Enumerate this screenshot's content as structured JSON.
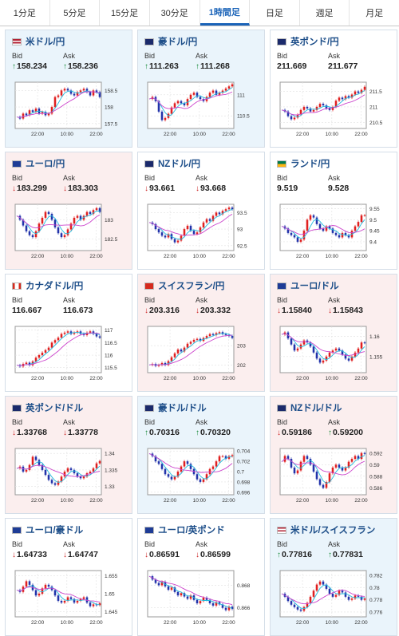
{
  "timeframe_tabs": [
    {
      "label": "1分足",
      "active": false
    },
    {
      "label": "5分足",
      "active": false
    },
    {
      "label": "15分足",
      "active": false
    },
    {
      "label": "30分足",
      "active": false
    },
    {
      "label": "1時間足",
      "active": true
    },
    {
      "label": "日足",
      "active": false
    },
    {
      "label": "週足",
      "active": false
    },
    {
      "label": "月足",
      "active": false
    }
  ],
  "labels": {
    "bid": "Bid",
    "ask": "Ask"
  },
  "colors": {
    "up_bg": "#eaf4fb",
    "down_bg": "#fbeeee",
    "candle_up": "#e02020",
    "candle_down": "#2233aa",
    "ma_fast": "#22bbdd",
    "ma_slow": "#cc44cc",
    "arrow_up": "#1a8a3a",
    "arrow_down": "#cc2222"
  },
  "cards": [
    {
      "pair": "米ドル/円",
      "flag": "us-jp",
      "trend": "up",
      "bid": "158.234",
      "ask": "158.236",
      "bid_dir": "up",
      "ask_dir": "up",
      "chart": {
        "x_ticks": [
          "22:00",
          "10:00",
          "22:00"
        ],
        "y_ticks": [
          {
            "label": "158.5",
            "value": 158.5
          },
          {
            "label": "158",
            "value": 158
          },
          {
            "label": "157.5",
            "value": 157.5
          }
        ],
        "ymin": 157.35,
        "ymax": 158.75,
        "series": [
          157.7,
          157.65,
          157.8,
          157.75,
          157.9,
          157.85,
          157.95,
          157.8,
          157.85,
          157.75,
          157.8,
          158.0,
          158.3,
          158.35,
          158.5,
          158.55,
          158.5,
          158.4,
          158.35,
          158.45,
          158.5,
          158.55,
          158.45,
          158.35,
          158.5,
          158.45,
          158.3
        ]
      }
    },
    {
      "pair": "豪ドル/円",
      "flag": "au-jp",
      "trend": "up",
      "bid": "111.263",
      "ask": "111.268",
      "bid_dir": "up",
      "ask_dir": "up",
      "chart": {
        "x_ticks": [
          "22:00",
          "10:00",
          "22:00"
        ],
        "y_ticks": [
          {
            "label": "111",
            "value": 111
          },
          {
            "label": "110.5",
            "value": 110.5
          }
        ],
        "ymin": 110.2,
        "ymax": 111.3,
        "series": [
          110.9,
          110.95,
          110.85,
          110.6,
          110.4,
          110.45,
          110.55,
          110.7,
          110.8,
          110.85,
          110.8,
          110.75,
          110.9,
          111.0,
          111.05,
          110.95,
          110.9,
          110.85,
          110.95,
          111.05,
          111.1,
          111.0,
          111.05,
          111.1,
          111.15,
          111.2,
          111.25
        ]
      }
    },
    {
      "pair": "英ポンド/円",
      "flag": "gb-jp",
      "trend": "neutral",
      "bid": "211.669",
      "ask": "211.677",
      "bid_dir": "",
      "ask_dir": "",
      "chart": {
        "x_ticks": [
          "22:00",
          "10:00",
          "22:00"
        ],
        "y_ticks": [
          {
            "label": "211.5",
            "value": 211.5
          },
          {
            "label": "211",
            "value": 211
          },
          {
            "label": "210.5",
            "value": 210.5
          }
        ],
        "ymin": 210.3,
        "ymax": 211.8,
        "series": [
          210.9,
          210.85,
          210.7,
          210.6,
          210.65,
          210.75,
          210.9,
          211.0,
          210.95,
          210.85,
          210.9,
          211.0,
          211.1,
          211.05,
          210.95,
          210.9,
          211.0,
          211.2,
          211.3,
          211.25,
          211.35,
          211.3,
          211.4,
          211.5,
          211.45,
          211.55,
          211.65
        ]
      }
    },
    {
      "pair": "ユーロ/円",
      "flag": "eu-jp",
      "trend": "down",
      "bid": "183.299",
      "ask": "183.303",
      "bid_dir": "down",
      "ask_dir": "down",
      "chart": {
        "x_ticks": [
          "22:00",
          "10:00",
          "22:00"
        ],
        "y_ticks": [
          {
            "label": "183",
            "value": 183
          },
          {
            "label": "182.5",
            "value": 182.5
          }
        ],
        "ymin": 182.2,
        "ymax": 183.4,
        "series": [
          183.1,
          183.0,
          182.85,
          182.7,
          182.6,
          182.55,
          182.7,
          182.9,
          183.05,
          183.2,
          183.15,
          183.0,
          182.8,
          182.65,
          182.55,
          182.6,
          182.75,
          182.9,
          183.05,
          183.1,
          183.0,
          183.1,
          183.2,
          183.15,
          183.25,
          183.3,
          183.2
        ]
      }
    },
    {
      "pair": "NZドル/円",
      "flag": "nz-jp",
      "trend": "neutral",
      "bid": "93.661",
      "ask": "93.668",
      "bid_dir": "down",
      "ask_dir": "down",
      "chart": {
        "x_ticks": [
          "22:00",
          "10:00",
          "22:00"
        ],
        "y_ticks": [
          {
            "label": "93.5",
            "value": 93.5
          },
          {
            "label": "93",
            "value": 93
          },
          {
            "label": "92.5",
            "value": 92.5
          }
        ],
        "ymin": 92.35,
        "ymax": 93.75,
        "series": [
          93.2,
          93.15,
          93.0,
          92.9,
          92.8,
          92.75,
          92.85,
          92.7,
          92.6,
          92.65,
          92.8,
          93.0,
          93.1,
          92.95,
          92.85,
          92.9,
          93.05,
          93.2,
          93.3,
          93.25,
          93.4,
          93.5,
          93.45,
          93.55,
          93.6,
          93.65,
          93.6
        ]
      }
    },
    {
      "pair": "ランド/円",
      "flag": "za-jp",
      "trend": "neutral",
      "bid": "9.519",
      "ask": "9.528",
      "bid_dir": "",
      "ask_dir": "",
      "chart": {
        "x_ticks": [
          "22:00",
          "10:00",
          "22:00"
        ],
        "y_ticks": [
          {
            "label": "9.55",
            "value": 9.55
          },
          {
            "label": "9.5",
            "value": 9.5
          },
          {
            "label": "9.45",
            "value": 9.45
          },
          {
            "label": "9.4",
            "value": 9.4
          }
        ],
        "ymin": 9.36,
        "ymax": 9.57,
        "series": [
          9.47,
          9.46,
          9.44,
          9.43,
          9.42,
          9.4,
          9.41,
          9.45,
          9.5,
          9.52,
          9.51,
          9.48,
          9.46,
          9.45,
          9.47,
          9.46,
          9.44,
          9.43,
          9.42,
          9.44,
          9.43,
          9.42,
          9.45,
          9.47,
          9.49,
          9.52,
          9.52
        ]
      }
    },
    {
      "pair": "カナダドル/円",
      "flag": "ca-jp",
      "trend": "neutral",
      "bid": "116.667",
      "ask": "116.673",
      "bid_dir": "",
      "ask_dir": "",
      "chart": {
        "x_ticks": [
          "22:00",
          "10:00",
          "22:00"
        ],
        "y_ticks": [
          {
            "label": "117",
            "value": 117
          },
          {
            "label": "116.5",
            "value": 116.5
          },
          {
            "label": "116",
            "value": 116
          },
          {
            "label": "115.5",
            "value": 115.5
          }
        ],
        "ymin": 115.3,
        "ymax": 117.15,
        "series": [
          115.6,
          115.55,
          115.65,
          115.7,
          115.6,
          115.75,
          115.9,
          116.0,
          116.1,
          116.2,
          116.3,
          116.5,
          116.6,
          116.7,
          116.85,
          116.9,
          116.95,
          116.85,
          116.9,
          116.95,
          116.85,
          116.8,
          116.9,
          116.95,
          116.85,
          116.75,
          116.7
        ]
      }
    },
    {
      "pair": "スイスフラン/円",
      "flag": "ch-jp",
      "trend": "down",
      "bid": "203.316",
      "ask": "203.332",
      "bid_dir": "down",
      "ask_dir": "down",
      "chart": {
        "x_ticks": [
          "22:00",
          "10:00",
          "22:00"
        ],
        "y_ticks": [
          {
            "label": "203",
            "value": 203
          },
          {
            "label": "202",
            "value": 202
          }
        ],
        "ymin": 201.6,
        "ymax": 204.0,
        "series": [
          202.0,
          202.05,
          201.95,
          202.0,
          202.1,
          202.0,
          202.2,
          202.4,
          202.6,
          202.8,
          202.7,
          202.9,
          203.1,
          203.2,
          203.3,
          203.35,
          203.25,
          203.4,
          203.5,
          203.6,
          203.55,
          203.65,
          203.7,
          203.6,
          203.55,
          203.5,
          203.4
        ]
      }
    },
    {
      "pair": "ユーロ/ドル",
      "flag": "eu-us",
      "trend": "down",
      "bid": "1.15840",
      "ask": "1.15843",
      "bid_dir": "down",
      "ask_dir": "down",
      "chart": {
        "x_ticks": [
          "22:00",
          "10:00",
          "22:00"
        ],
        "y_ticks": [
          {
            "label": "1.16",
            "value": 1.16
          },
          {
            "label": "1.155",
            "value": 1.155
          }
        ],
        "ymin": 1.151,
        "ymax": 1.1625,
        "series": [
          1.1605,
          1.161,
          1.1595,
          1.158,
          1.1565,
          1.157,
          1.158,
          1.159,
          1.1585,
          1.1575,
          1.156,
          1.1545,
          1.1535,
          1.154,
          1.155,
          1.156,
          1.1565,
          1.157,
          1.1565,
          1.1555,
          1.1545,
          1.154,
          1.155,
          1.156,
          1.157,
          1.1585,
          1.1584
        ]
      }
    },
    {
      "pair": "英ポンド/ドル",
      "flag": "gb-us",
      "trend": "down",
      "bid": "1.33768",
      "ask": "1.33778",
      "bid_dir": "down",
      "ask_dir": "down",
      "chart": {
        "x_ticks": [
          "22:00",
          "10:00",
          "22:00"
        ],
        "y_ticks": [
          {
            "label": "1.34",
            "value": 1.34
          },
          {
            "label": "1.335",
            "value": 1.335
          },
          {
            "label": "1.33",
            "value": 1.33
          }
        ],
        "ymin": 1.3275,
        "ymax": 1.3415,
        "series": [
          1.3355,
          1.336,
          1.3345,
          1.335,
          1.3365,
          1.339,
          1.338,
          1.3365,
          1.335,
          1.3335,
          1.332,
          1.331,
          1.3305,
          1.3315,
          1.333,
          1.3345,
          1.3355,
          1.335,
          1.334,
          1.333,
          1.3325,
          1.333,
          1.334,
          1.3345,
          1.3355,
          1.337,
          1.3377
        ]
      }
    },
    {
      "pair": "豪ドル/ドル",
      "flag": "au-us",
      "trend": "up",
      "bid": "0.70316",
      "ask": "0.70320",
      "bid_dir": "up",
      "ask_dir": "up",
      "chart": {
        "x_ticks": [
          "22:00",
          "10:00",
          "22:00"
        ],
        "y_ticks": [
          {
            "label": "0.704",
            "value": 0.704
          },
          {
            "label": "0.702",
            "value": 0.702
          },
          {
            "label": "0.7",
            "value": 0.7
          },
          {
            "label": "0.698",
            "value": 0.698
          },
          {
            "label": "0.696",
            "value": 0.696
          }
        ],
        "ymin": 0.6955,
        "ymax": 0.7045,
        "series": [
          0.7035,
          0.703,
          0.702,
          0.7015,
          0.7005,
          0.6995,
          0.699,
          0.6985,
          0.699,
          0.7,
          0.701,
          0.702,
          0.7015,
          0.7005,
          0.6995,
          0.6985,
          0.698,
          0.6985,
          0.6995,
          0.7005,
          0.701,
          0.702,
          0.703,
          0.703,
          0.7025,
          0.703,
          0.7032
        ]
      }
    },
    {
      "pair": "NZドル/ドル",
      "flag": "nz-us",
      "trend": "down",
      "bid": "0.59186",
      "ask": "0.59200",
      "bid_dir": "down",
      "ask_dir": "up",
      "chart": {
        "x_ticks": [
          "22:00",
          "10:00",
          "22:00"
        ],
        "y_ticks": [
          {
            "label": "0.592",
            "value": 0.592
          },
          {
            "label": "0.59",
            "value": 0.59
          },
          {
            "label": "0.588",
            "value": 0.588
          },
          {
            "label": "0.586",
            "value": 0.586
          }
        ],
        "ymin": 0.5848,
        "ymax": 0.5928,
        "series": [
          0.5905,
          0.5915,
          0.591,
          0.5895,
          0.5885,
          0.589,
          0.5905,
          0.5915,
          0.591,
          0.59,
          0.5888,
          0.5875,
          0.5865,
          0.586,
          0.587,
          0.5885,
          0.5895,
          0.59,
          0.5895,
          0.589,
          0.5895,
          0.5905,
          0.591,
          0.5915,
          0.591,
          0.592,
          0.5919
        ]
      }
    },
    {
      "pair": "ユーロ/豪ドル",
      "flag": "eu-au",
      "trend": "neutral",
      "bid": "1.64733",
      "ask": "1.64747",
      "bid_dir": "down",
      "ask_dir": "down",
      "chart": {
        "x_ticks": [
          "22:00",
          "10:00",
          "22:00"
        ],
        "y_ticks": [
          {
            "label": "1.655",
            "value": 1.655
          },
          {
            "label": "1.65",
            "value": 1.65
          },
          {
            "label": "1.645",
            "value": 1.645
          }
        ],
        "ymin": 1.6435,
        "ymax": 1.6565,
        "series": [
          1.651,
          1.6505,
          1.652,
          1.6535,
          1.6525,
          1.651,
          1.6495,
          1.65,
          1.6515,
          1.6525,
          1.652,
          1.651,
          1.6495,
          1.648,
          1.6475,
          1.648,
          1.649,
          1.6485,
          1.6475,
          1.648,
          1.6485,
          1.649,
          1.6475,
          1.6465,
          1.647,
          1.6468,
          1.6473
        ]
      }
    },
    {
      "pair": "ユーロ/英ポンド",
      "flag": "eu-gb",
      "trend": "neutral",
      "bid": "0.86591",
      "ask": "0.86599",
      "bid_dir": "down",
      "ask_dir": "down",
      "chart": {
        "x_ticks": [
          "22:00",
          "10:00",
          "22:00"
        ],
        "y_ticks": [
          {
            "label": "0.868",
            "value": 0.868
          },
          {
            "label": "0.866",
            "value": 0.866
          }
        ],
        "ymin": 0.8652,
        "ymax": 0.8693,
        "series": [
          0.8688,
          0.8685,
          0.8682,
          0.868,
          0.8683,
          0.8679,
          0.8676,
          0.8678,
          0.8674,
          0.8671,
          0.8673,
          0.867,
          0.8668,
          0.8671,
          0.8667,
          0.8664,
          0.8666,
          0.8669,
          0.8667,
          0.8664,
          0.8662,
          0.8665,
          0.8663,
          0.866,
          0.8658,
          0.8661,
          0.8659
        ]
      }
    },
    {
      "pair": "米ドル/スイスフラン",
      "flag": "us-ch",
      "trend": "up",
      "bid": "0.77816",
      "ask": "0.77831",
      "bid_dir": "up",
      "ask_dir": "up",
      "chart": {
        "x_ticks": [
          "22:00",
          "10:00",
          "22:00"
        ],
        "y_ticks": [
          {
            "label": "0.782",
            "value": 0.782
          },
          {
            "label": "0.78",
            "value": 0.78
          },
          {
            "label": "0.778",
            "value": 0.778
          },
          {
            "label": "0.776",
            "value": 0.776
          }
        ],
        "ymin": 0.7752,
        "ymax": 0.7828,
        "series": [
          0.779,
          0.7785,
          0.7778,
          0.7772,
          0.7768,
          0.7764,
          0.7762,
          0.7768,
          0.7775,
          0.7785,
          0.7795,
          0.7805,
          0.781,
          0.7805,
          0.7798,
          0.779,
          0.7785,
          0.7788,
          0.7795,
          0.7792,
          0.7785,
          0.778,
          0.7782,
          0.7787,
          0.7785,
          0.778,
          0.7782
        ]
      }
    }
  ]
}
